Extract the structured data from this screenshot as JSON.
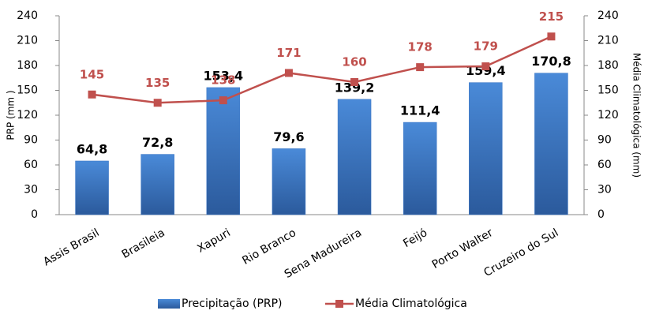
{
  "chart_data": {
    "type": "bar",
    "categories": [
      "Assis Brasil",
      "Brasileia",
      "Xapuri",
      "Rio Branco",
      "Sena Madureira",
      "Feijó",
      "Porto Walter",
      "Cruzeiro do Sul"
    ],
    "series": [
      {
        "name": "Precipitação (PRP)",
        "type": "bar",
        "color": "#3a75c4",
        "values": [
          64.8,
          72.8,
          153.4,
          79.6,
          139.2,
          111.4,
          159.4,
          170.8
        ],
        "value_labels": [
          "64,8",
          "72,8",
          "153,4",
          "79,6",
          "139,2",
          "111,4",
          "159,4",
          "170,8"
        ]
      },
      {
        "name": "Média Climatológica",
        "type": "line",
        "color": "#c0504d",
        "axis": "y2",
        "values": [
          145,
          135,
          138,
          171,
          160,
          178,
          179,
          215
        ]
      }
    ],
    "ylabel": "PRP (mm )",
    "y2label": "Média Climatológica (mm)",
    "ylim": [
      0,
      240
    ],
    "yticks": [
      0,
      30,
      60,
      90,
      120,
      150,
      180,
      210,
      240
    ],
    "y2lim": [
      0,
      240
    ],
    "y2ticks": [
      0,
      30,
      60,
      90,
      120,
      150,
      180,
      210,
      240
    ],
    "legend": "bottom"
  }
}
